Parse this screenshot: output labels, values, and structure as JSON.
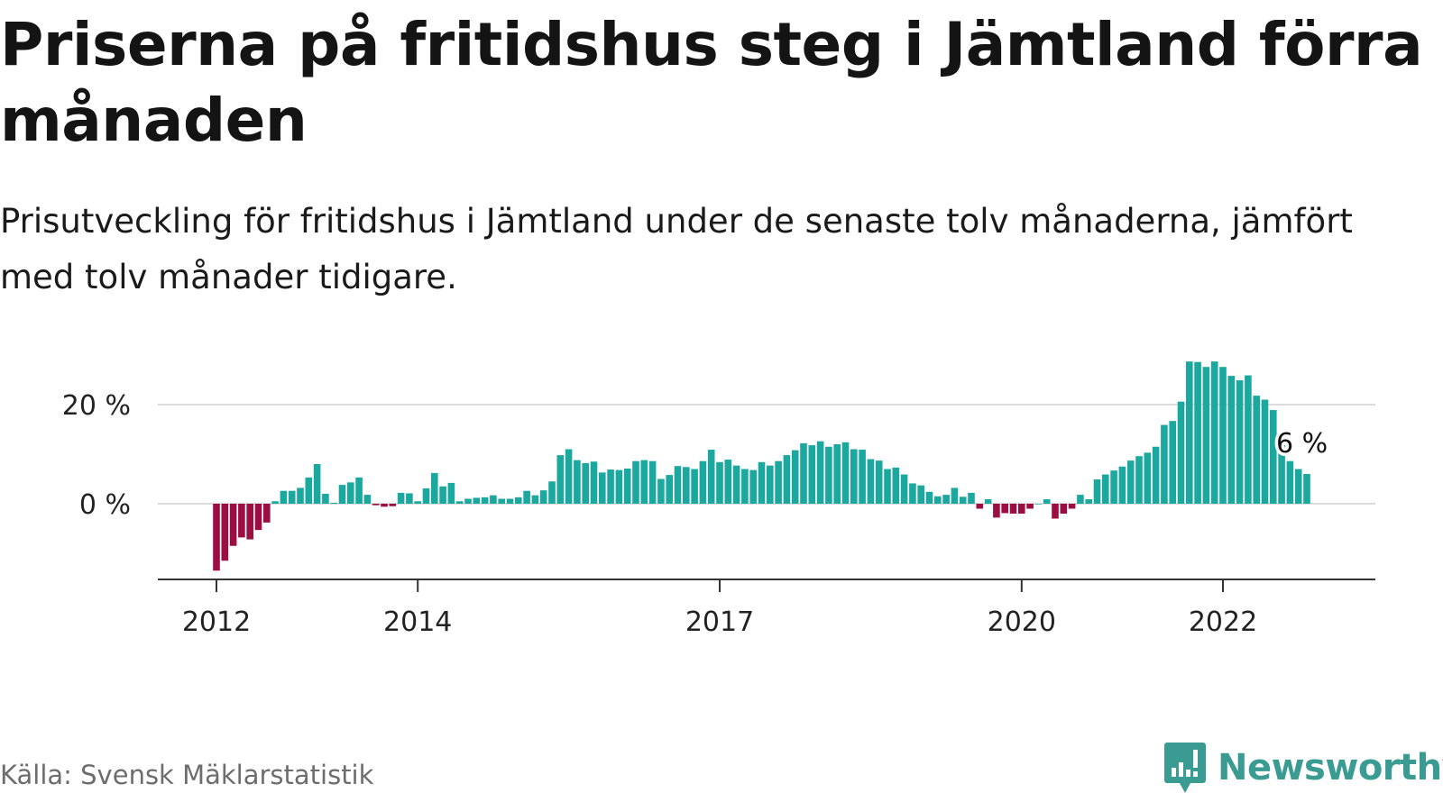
{
  "header": {
    "title": "Priserna på fritidshus steg i Jämtland förra månaden",
    "subtitle": "Prisutveckling för fritidshus i Jämtland under de senaste tolv månaderna, jämfört med tolv månader tidigare."
  },
  "footer": {
    "source": "Källa: Svensk Mäklarstatistik",
    "brand": "Newsworthy",
    "brand_icon": "newsworthy-logo-icon"
  },
  "colors": {
    "positive": "#1ba99f",
    "negative": "#9c0d42",
    "gridline": "#dcdcdc",
    "axis": "#333333",
    "brand": "#3a9b92"
  },
  "chart_data": {
    "type": "bar",
    "unit": "%",
    "start": "2012-01",
    "ylim": [
      -15,
      30
    ],
    "yticks": [
      0,
      20
    ],
    "ytick_labels": [
      "0 %",
      "20 %"
    ],
    "xticks": [
      "2012",
      "2014",
      "2017",
      "2020",
      "2022"
    ],
    "grid": true,
    "annotation": {
      "label": "6 %",
      "value": 6
    },
    "values": [
      -13.5,
      -11.5,
      -8.5,
      -6.8,
      -7.2,
      -5.3,
      -3.8,
      0.5,
      2.6,
      2.6,
      3.2,
      5.3,
      8.0,
      2.0,
      0.2,
      3.8,
      4.3,
      5.3,
      1.8,
      -0.3,
      -0.6,
      -0.5,
      2.2,
      2.1,
      0.5,
      3.1,
      6.2,
      3.5,
      4.2,
      0.5,
      1.0,
      1.2,
      1.3,
      1.7,
      1.0,
      1.0,
      1.3,
      2.6,
      1.7,
      2.7,
      4.5,
      9.8,
      11.0,
      8.8,
      8.2,
      8.5,
      6.3,
      6.9,
      6.8,
      7.1,
      8.6,
      8.8,
      8.6,
      5.0,
      5.8,
      7.6,
      7.4,
      7.0,
      8.6,
      10.9,
      8.4,
      8.9,
      7.7,
      7.0,
      6.8,
      8.4,
      7.7,
      8.6,
      9.8,
      10.8,
      12.2,
      11.8,
      12.6,
      11.5,
      12.0,
      12.4,
      11.0,
      10.9,
      9.0,
      8.7,
      7.0,
      7.3,
      5.9,
      4.1,
      3.7,
      2.4,
      1.5,
      1.8,
      3.2,
      1.4,
      2.2,
      -1.0,
      0.9,
      -2.8,
      -1.9,
      -2.0,
      -2.0,
      -1.0,
      0.0,
      0.9,
      -3.0,
      -2.0,
      -1.0,
      1.8,
      0.9,
      4.9,
      5.9,
      6.7,
      7.5,
      8.7,
      9.6,
      10.3,
      11.5,
      15.9,
      16.7,
      20.6,
      28.7,
      28.6,
      27.6,
      28.7,
      27.6,
      25.8,
      24.9,
      25.9,
      21.8,
      21.0,
      18.9,
      11.8,
      8.6,
      7.0,
      6.0
    ]
  }
}
